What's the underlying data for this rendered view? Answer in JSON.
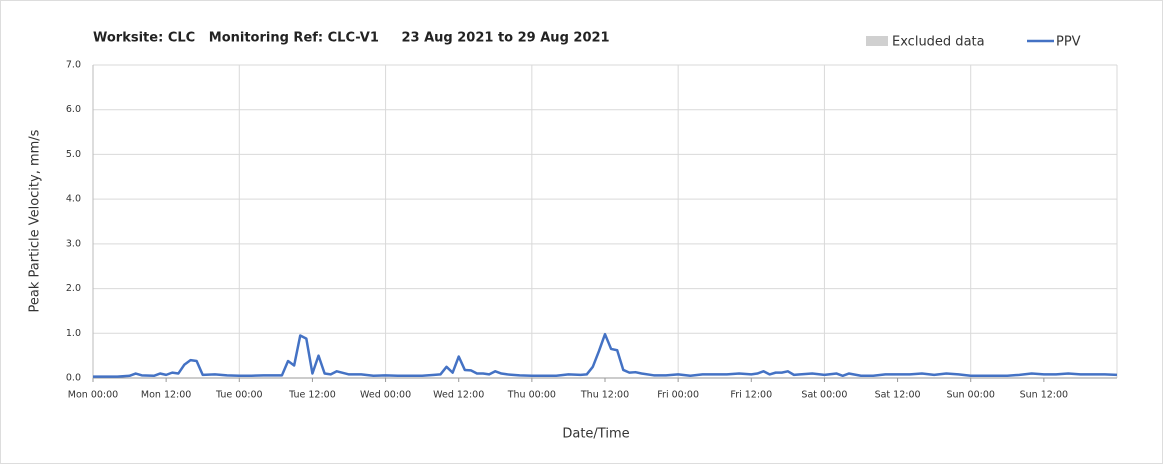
{
  "chart_data": {
    "type": "line",
    "title": "Worksite: CLC   Monitoring Ref: CLC-V1     23 Aug 2021 to 29 Aug 2021",
    "x_label": "Date/Time",
    "y_label": "Peak Particle Velocity, mm/s",
    "legend_excluded": "Excluded data",
    "excluded_color": "#d0d0d0",
    "xlim": [
      0,
      168
    ],
    "xticks": [
      {
        "value": 0,
        "label": "Mon 00:00"
      },
      {
        "value": 12,
        "label": "Mon 12:00"
      },
      {
        "value": 24,
        "label": "Tue 00:00"
      },
      {
        "value": 36,
        "label": "Tue 12:00"
      },
      {
        "value": 48,
        "label": "Wed 00:00"
      },
      {
        "value": 60,
        "label": "Wed 12:00"
      },
      {
        "value": 72,
        "label": "Thu 00:00"
      },
      {
        "value": 84,
        "label": "Thu 12:00"
      },
      {
        "value": 96,
        "label": "Fri 00:00"
      },
      {
        "value": 108,
        "label": "Fri 12:00"
      },
      {
        "value": 120,
        "label": "Sat 00:00"
      },
      {
        "value": 132,
        "label": "Sat 12:00"
      },
      {
        "value": 144,
        "label": "Sun 00:00"
      },
      {
        "value": 156,
        "label": "Sun 12:00"
      }
    ],
    "x_grid_ticks": [
      24,
      48,
      72,
      96,
      120,
      144
    ],
    "ylim": [
      0,
      7
    ],
    "yticks": [
      {
        "value": 0,
        "label": "0.0"
      },
      {
        "value": 1,
        "label": "1.0"
      },
      {
        "value": 2,
        "label": "2.0"
      },
      {
        "value": 3,
        "label": "3.0"
      },
      {
        "value": 4,
        "label": "4.0"
      },
      {
        "value": 5,
        "label": "5.0"
      },
      {
        "value": 6,
        "label": "6.0"
      },
      {
        "value": 7,
        "label": "7.0"
      }
    ],
    "grid": true,
    "x": [
      0,
      2,
      4,
      6,
      7,
      8,
      10,
      11,
      12,
      13,
      14,
      15,
      16,
      17,
      18,
      20,
      22,
      24,
      26,
      28,
      30,
      31,
      32,
      33,
      34,
      35,
      36,
      37,
      38,
      39,
      40,
      42,
      44,
      46,
      48,
      50,
      52,
      54,
      56,
      57,
      58,
      59,
      60,
      61,
      62,
      63,
      64,
      65,
      66,
      67,
      68,
      70,
      72,
      74,
      76,
      78,
      80,
      81,
      82,
      83,
      84,
      85,
      86,
      87,
      88,
      89,
      90,
      92,
      94,
      96,
      98,
      100,
      102,
      104,
      106,
      108,
      109,
      110,
      111,
      112,
      113,
      114,
      115,
      116,
      118,
      120,
      122,
      123,
      124,
      126,
      128,
      130,
      132,
      134,
      136,
      138,
      140,
      142,
      144,
      146,
      148,
      150,
      152,
      154,
      156,
      158,
      160,
      162,
      164,
      166,
      168
    ],
    "series": [
      {
        "name": "PPV",
        "color": "#4472c4",
        "values": [
          0.03,
          0.03,
          0.03,
          0.05,
          0.1,
          0.06,
          0.05,
          0.1,
          0.07,
          0.12,
          0.1,
          0.3,
          0.4,
          0.38,
          0.07,
          0.08,
          0.06,
          0.05,
          0.05,
          0.06,
          0.06,
          0.06,
          0.38,
          0.28,
          0.95,
          0.88,
          0.1,
          0.5,
          0.1,
          0.08,
          0.15,
          0.08,
          0.08,
          0.05,
          0.06,
          0.05,
          0.05,
          0.05,
          0.07,
          0.08,
          0.25,
          0.12,
          0.48,
          0.18,
          0.17,
          0.1,
          0.1,
          0.08,
          0.15,
          0.1,
          0.08,
          0.06,
          0.05,
          0.05,
          0.05,
          0.08,
          0.07,
          0.08,
          0.25,
          0.6,
          0.98,
          0.65,
          0.62,
          0.18,
          0.12,
          0.13,
          0.1,
          0.06,
          0.06,
          0.08,
          0.05,
          0.08,
          0.08,
          0.08,
          0.1,
          0.08,
          0.1,
          0.15,
          0.08,
          0.12,
          0.12,
          0.15,
          0.07,
          0.08,
          0.1,
          0.07,
          0.1,
          0.05,
          0.1,
          0.05,
          0.05,
          0.08,
          0.08,
          0.08,
          0.1,
          0.07,
          0.1,
          0.08,
          0.05,
          0.05,
          0.05,
          0.05,
          0.07,
          0.1,
          0.08,
          0.08,
          0.1,
          0.08,
          0.08,
          0.08,
          0.07
        ]
      }
    ]
  }
}
